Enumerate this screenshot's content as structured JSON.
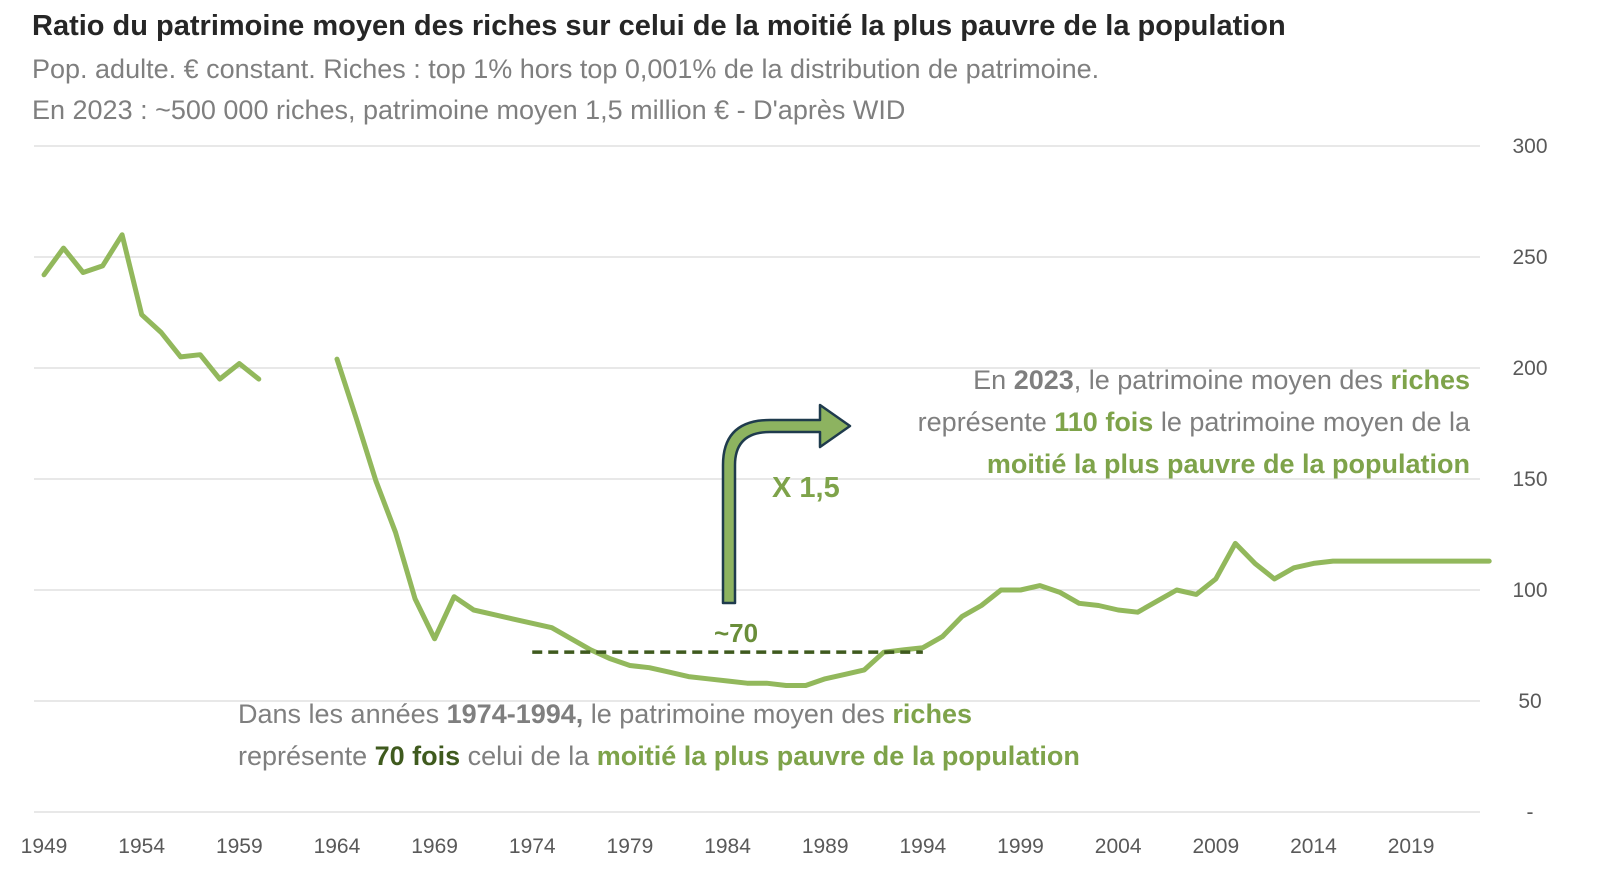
{
  "title": "Ratio du patrimoine moyen des riches sur celui de la moitié la plus pauvre de la population",
  "subtitle_line1": "Pop. adulte. € constant. Riches : top 1% hors top 0,001% de la distribution de patrimoine.",
  "subtitle_line2": "En 2023 : ~500 000 riches, patrimoine moyen 1,5 million €  - D'après WID",
  "colors": {
    "line": "#92b85c",
    "dashed": "#3f5a1e",
    "arrow_fill": "#8db360",
    "arrow_stroke": "#1f3b4d",
    "grid": "#d9d9d9"
  },
  "annotation_right": {
    "l1_a": "En ",
    "l1_b": "2023",
    "l1_c": ", le patrimoine moyen des ",
    "l1_d": "riches",
    "l2_a": "représente ",
    "l2_b": "110 fois",
    "l2_c": " le patrimoine moyen de la",
    "l3": "moitié la plus pauvre de la population"
  },
  "annotation_left": {
    "l1_a": "Dans les années ",
    "l1_b": "1974-1994,",
    "l1_c": " le patrimoine moyen des ",
    "l1_d": "riches",
    "l2_a": "représente ",
    "l2_b": "70  fois",
    "l2_c": " celui de la ",
    "l2_d": "moitié la plus pauvre de la population"
  },
  "arrow_label": "X 1,5",
  "dashed_label": "~70",
  "chart_data": {
    "type": "line",
    "title": "Ratio du patrimoine moyen des riches sur celui de la moitié la plus pauvre de la population",
    "xlabel": "",
    "ylabel": "",
    "ylim": [
      0,
      300
    ],
    "xlim": [
      1949,
      2023
    ],
    "x_ticks": [
      1949,
      1954,
      1959,
      1964,
      1969,
      1974,
      1979,
      1984,
      1989,
      1994,
      1999,
      2004,
      2009,
      2014,
      2019
    ],
    "y_ticks": [
      {
        "value": 0,
        "label": "-"
      },
      {
        "value": 50,
        "label": "50"
      },
      {
        "value": 100,
        "label": "100"
      },
      {
        "value": 150,
        "label": "150"
      },
      {
        "value": 200,
        "label": "200"
      },
      {
        "value": 250,
        "label": "250"
      },
      {
        "value": 300,
        "label": "300"
      }
    ],
    "grid": true,
    "series": [
      {
        "name": "Ratio",
        "segments": [
          [
            [
              1949,
              242
            ],
            [
              1950,
              254
            ],
            [
              1951,
              243
            ],
            [
              1952,
              246
            ],
            [
              1953,
              260
            ],
            [
              1954,
              224
            ],
            [
              1955,
              216
            ],
            [
              1956,
              205
            ],
            [
              1957,
              206
            ],
            [
              1958,
              195
            ],
            [
              1959,
              202
            ],
            [
              1960,
              195
            ]
          ],
          [
            [
              1964,
              204
            ],
            [
              1965,
              177
            ],
            [
              1966,
              149
            ],
            [
              1967,
              126
            ],
            [
              1968,
              96
            ],
            [
              1969,
              78
            ],
            [
              1970,
              97
            ],
            [
              1971,
              91
            ],
            [
              1972,
              89
            ],
            [
              1973,
              87
            ],
            [
              1974,
              85
            ],
            [
              1975,
              83
            ],
            [
              1976,
              78
            ],
            [
              1977,
              73
            ],
            [
              1978,
              69
            ],
            [
              1979,
              66
            ],
            [
              1980,
              65
            ],
            [
              1981,
              63
            ],
            [
              1982,
              61
            ],
            [
              1983,
              60
            ],
            [
              1984,
              59
            ],
            [
              1985,
              58
            ],
            [
              1986,
              58
            ],
            [
              1987,
              57
            ],
            [
              1988,
              57
            ],
            [
              1989,
              60
            ],
            [
              1990,
              62
            ],
            [
              1991,
              64
            ],
            [
              1992,
              72
            ],
            [
              1993,
              73
            ],
            [
              1994,
              74
            ],
            [
              1995,
              79
            ],
            [
              1996,
              88
            ],
            [
              1997,
              93
            ],
            [
              1998,
              100
            ],
            [
              1999,
              100
            ],
            [
              2000,
              102
            ],
            [
              2001,
              99
            ],
            [
              2002,
              94
            ],
            [
              2003,
              93
            ],
            [
              2004,
              91
            ],
            [
              2005,
              90
            ],
            [
              2006,
              95
            ],
            [
              2007,
              100
            ],
            [
              2008,
              98
            ],
            [
              2009,
              105
            ],
            [
              2010,
              121
            ],
            [
              2011,
              112
            ],
            [
              2012,
              105
            ],
            [
              2013,
              110
            ],
            [
              2014,
              112
            ],
            [
              2015,
              113
            ],
            [
              2016,
              113
            ],
            [
              2017,
              113
            ],
            [
              2018,
              113
            ],
            [
              2019,
              113
            ],
            [
              2020,
              113
            ],
            [
              2021,
              113
            ],
            [
              2022,
              113
            ],
            [
              2023,
              113
            ]
          ]
        ]
      }
    ],
    "reference_line": {
      "label": "~70",
      "value": 72,
      "x_from": 1974,
      "x_to": 1994,
      "style": "dashed"
    },
    "annotations": [
      "X 1,5",
      "~70"
    ]
  }
}
